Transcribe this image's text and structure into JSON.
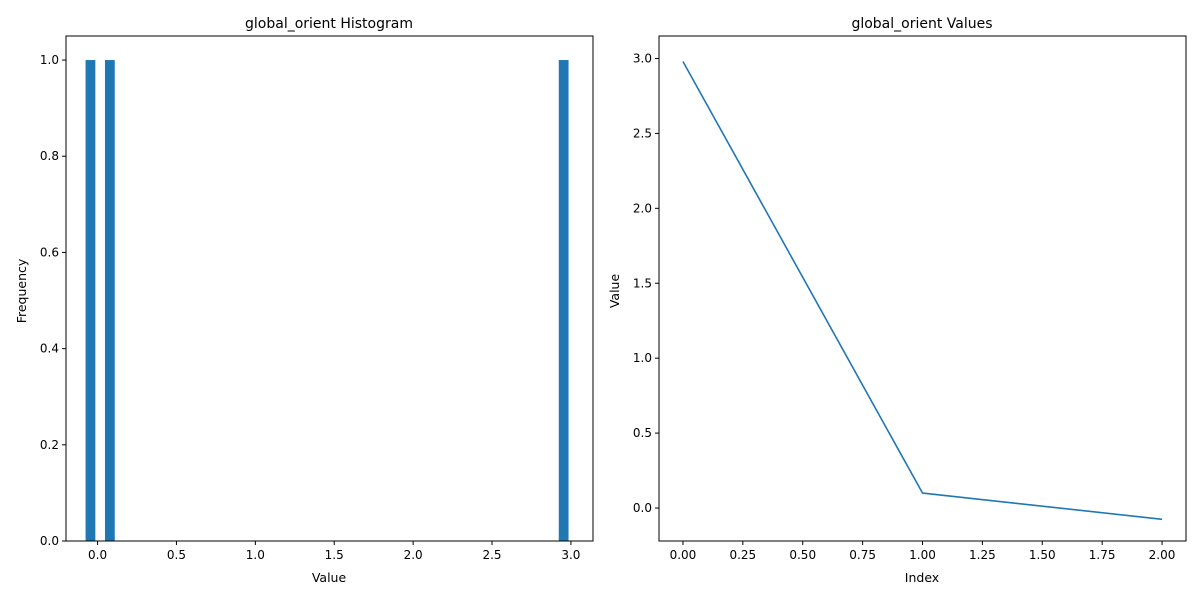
{
  "colors": {
    "series": "#1f77b4",
    "axes": "#000000",
    "background": "#ffffff"
  },
  "chart_data": [
    {
      "type": "bar",
      "title": "global_orient Histogram",
      "xlabel": "Value",
      "ylabel": "Frequency",
      "xlim": [
        -0.2,
        3.14
      ],
      "ylim": [
        0,
        1.05
      ],
      "xticks": [
        "0.0",
        "0.5",
        "1.0",
        "1.5",
        "2.0",
        "2.5",
        "3.0"
      ],
      "yticks": [
        "0.0",
        "0.2",
        "0.4",
        "0.6",
        "0.8",
        "1.0"
      ],
      "grid": false,
      "bins": [
        {
          "x0": -0.076,
          "x1": -0.014,
          "count": 1
        },
        {
          "x0": 0.047,
          "x1": 0.109,
          "count": 1
        },
        {
          "x0": 2.923,
          "x1": 2.985,
          "count": 1
        }
      ]
    },
    {
      "type": "line",
      "title": "global_orient Values",
      "xlabel": "Index",
      "ylabel": "Value",
      "xlim": [
        -0.1,
        2.1
      ],
      "ylim": [
        -0.22,
        3.15
      ],
      "xticks": [
        "0.00",
        "0.25",
        "0.50",
        "0.75",
        "1.00",
        "1.25",
        "1.50",
        "1.75",
        "2.00"
      ],
      "yticks": [
        "0.0",
        "0.5",
        "1.0",
        "1.5",
        "2.0",
        "2.5",
        "3.0"
      ],
      "grid": false,
      "series": [
        {
          "x": [
            0,
            1,
            2
          ],
          "values": [
            2.98,
            0.1,
            -0.075
          ]
        }
      ]
    }
  ]
}
